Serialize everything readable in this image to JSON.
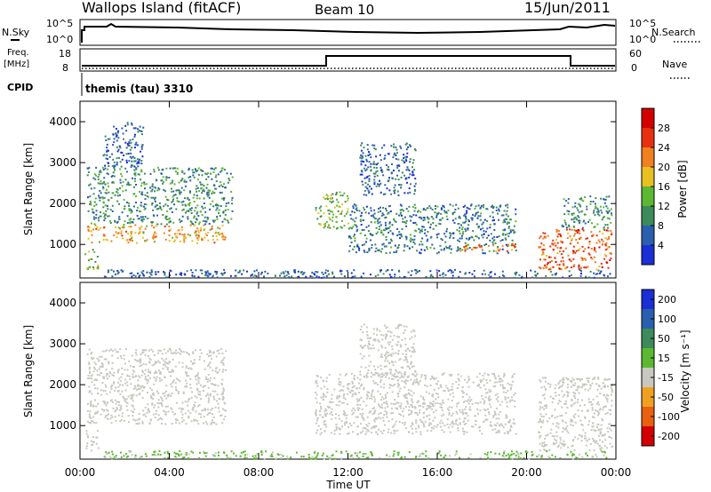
{
  "header": {
    "title": "Wallops Island (fitACF)",
    "beam": "Beam 10",
    "date": "15/Jun/2011"
  },
  "status_panels": {
    "nsky_label": "N.Sky",
    "nsky_ticks": [
      "10^5",
      "10^0"
    ],
    "nsearch_label": "N.Search",
    "nsearch_ticks": [
      "10^5",
      "10^0"
    ],
    "freq_label": "Freq.",
    "freq_unit": "[MHz]",
    "freq_ticks": [
      "18",
      "8"
    ],
    "nave_label": "Nave",
    "nave_ticks": [
      "60",
      "0"
    ],
    "cpid_label": "CPID",
    "cpid_value": "themis (tau) 3310"
  },
  "chart_data": [
    {
      "type": "heatmap",
      "name": "power",
      "ylabel": "Slant Range [km]",
      "xlabel": "Time UT",
      "x_ticks": [
        "00:00",
        "04:00",
        "08:00",
        "12:00",
        "16:00",
        "20:00",
        "00:00"
      ],
      "x_range_hours": [
        0,
        24
      ],
      "y_ticks": [
        1000,
        2000,
        3000,
        4000
      ],
      "ylim": [
        180,
        4500
      ],
      "colorbar_label": "Power [dB]",
      "colorbar_ticks": [
        "4",
        "8",
        "12",
        "16",
        "20",
        "24",
        "28"
      ],
      "colorbar_colors": [
        "#1a2fd6",
        "#2a5fb0",
        "#3d8a5a",
        "#5cb830",
        "#e8c020",
        "#f08020",
        "#e83010",
        "#d40000"
      ],
      "regions": [
        {
          "t": [
            0.3,
            6.5
          ],
          "r": [
            1050,
            1500
          ],
          "v": 20
        },
        {
          "t": [
            0.3,
            6.8
          ],
          "r": [
            1500,
            2900
          ],
          "v": 10
        },
        {
          "t": [
            1.0,
            2.8
          ],
          "r": [
            2900,
            4000
          ],
          "v": 6
        },
        {
          "t": [
            0.2,
            0.8
          ],
          "r": [
            400,
            900
          ],
          "v": 14
        },
        {
          "t": [
            10.5,
            12.0
          ],
          "r": [
            1400,
            2300
          ],
          "v": 14
        },
        {
          "t": [
            12.0,
            19.5
          ],
          "r": [
            800,
            2000
          ],
          "v": 8
        },
        {
          "t": [
            12.5,
            15.0
          ],
          "r": [
            2200,
            3500
          ],
          "v": 6
        },
        {
          "t": [
            17.0,
            19.5
          ],
          "r": [
            850,
            1050
          ],
          "v": 22
        },
        {
          "t": [
            20.5,
            23.8
          ],
          "r": [
            400,
            1400
          ],
          "v": 24
        },
        {
          "t": [
            21.5,
            23.8
          ],
          "r": [
            1400,
            2200
          ],
          "v": 10
        },
        {
          "t": [
            1.0,
            23.8
          ],
          "r": [
            200,
            400
          ],
          "v": 6
        }
      ]
    },
    {
      "type": "heatmap",
      "name": "velocity",
      "ylabel": "Slant Range [km]",
      "xlabel": "Time UT",
      "x_ticks": [
        "00:00",
        "04:00",
        "08:00",
        "12:00",
        "16:00",
        "20:00",
        "00:00"
      ],
      "x_range_hours": [
        0,
        24
      ],
      "y_ticks": [
        1000,
        2000,
        3000,
        4000
      ],
      "ylim": [
        180,
        4500
      ],
      "colorbar_label": "Velocity [m s⁻¹]",
      "colorbar_ticks": [
        "200",
        "100",
        "50",
        "15",
        "-15",
        "-50",
        "-100",
        "-200"
      ],
      "colorbar_colors": [
        "#1a2fd6",
        "#2a5fb0",
        "#3d8a5a",
        "#5cb830",
        "#c8c8c0",
        "#f0a020",
        "#e86010",
        "#d40000"
      ],
      "regions": [
        {
          "t": [
            0.3,
            6.5
          ],
          "r": [
            1050,
            2900
          ],
          "v": 0
        },
        {
          "t": [
            0.2,
            0.8
          ],
          "r": [
            400,
            900
          ],
          "v": 0
        },
        {
          "t": [
            10.5,
            19.5
          ],
          "r": [
            800,
            2300
          ],
          "v": 0
        },
        {
          "t": [
            12.5,
            15.0
          ],
          "r": [
            2200,
            3500
          ],
          "v": 0
        },
        {
          "t": [
            20.5,
            23.8
          ],
          "r": [
            400,
            2200
          ],
          "v": 0
        },
        {
          "t": [
            1.0,
            23.8
          ],
          "r": [
            200,
            400
          ],
          "v": 20
        }
      ]
    }
  ]
}
